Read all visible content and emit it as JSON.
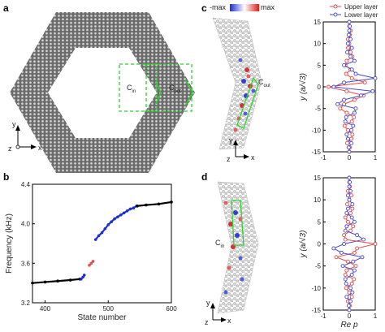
{
  "panels": {
    "a": {
      "label": "a",
      "c_in": "C",
      "c_in_sub": "in",
      "c_out": "C",
      "c_out_sub": "out",
      "axis_y": "y",
      "axis_z": "z",
      "axis_x": "x"
    },
    "b": {
      "label": "b"
    },
    "c": {
      "label": "c",
      "colorbar_min": "-max",
      "colorbar_max": "max",
      "c_label": "C",
      "c_label_sub": "out",
      "axis_y": "y",
      "axis_z": "z",
      "axis_x": "x"
    },
    "d": {
      "label": "d",
      "c_label": "C",
      "c_label_sub": "in",
      "axis_y": "y",
      "axis_z": "z",
      "axis_x": "x"
    }
  },
  "chart_data": [
    {
      "id": "b",
      "type": "scatter",
      "title": "",
      "xlabel": "State number",
      "ylabel": "Frequency (kHz)",
      "xlim": [
        380,
        600
      ],
      "ylim": [
        3.2,
        4.4
      ],
      "xticks": [
        400,
        500,
        600
      ],
      "yticks": [
        3.2,
        3.6,
        4.0,
        4.4
      ],
      "series": [
        {
          "color": "#000000",
          "x": [
            380,
            400,
            420,
            440,
            455
          ],
          "y": [
            3.4,
            3.41,
            3.42,
            3.43,
            3.44
          ]
        },
        {
          "color": "#1f2fd0",
          "x": [
            457,
            460,
            462
          ],
          "y": [
            3.44,
            3.46,
            3.48
          ]
        },
        {
          "color": "#e05050",
          "x": [
            470,
            473,
            476
          ],
          "y": [
            3.58,
            3.6,
            3.62
          ]
        },
        {
          "color": "#1f2fd0",
          "x": [
            480,
            485,
            490,
            495,
            500,
            505,
            510,
            515,
            520,
            525,
            530,
            535,
            540,
            545
          ],
          "y": [
            3.84,
            3.88,
            3.91,
            3.95,
            3.99,
            4.02,
            4.05,
            4.07,
            4.09,
            4.11,
            4.13,
            4.15,
            4.16,
            4.18
          ]
        },
        {
          "color": "#000000",
          "x": [
            546,
            560,
            580,
            600
          ],
          "y": [
            4.18,
            4.19,
            4.2,
            4.22
          ]
        }
      ]
    },
    {
      "id": "c",
      "type": "line",
      "title": "",
      "xlabel": "",
      "ylabel": "y (a/√3)",
      "xlim": [
        -1,
        1
      ],
      "ylim": [
        -15,
        15
      ],
      "xticks": [
        -1,
        0,
        1
      ],
      "yticks": [
        -15,
        -10,
        -5,
        0,
        5,
        10,
        15
      ],
      "legend": "top-right",
      "series": [
        {
          "name": "Upper layer",
          "color": "#e04848",
          "y": [
            -15,
            -14,
            -13,
            -12,
            -11,
            -10,
            -9,
            -8,
            -7,
            -6,
            -5,
            -4,
            -3,
            -2,
            -1,
            0,
            1,
            2,
            3,
            4,
            5,
            6,
            7,
            8,
            9,
            10,
            11,
            12,
            13,
            14,
            15
          ],
          "x": [
            0,
            0.02,
            -0.08,
            0.08,
            0.12,
            -0.05,
            -0.18,
            0.1,
            0.18,
            -0.1,
            -0.35,
            -0.2,
            0.2,
            0.55,
            -0.1,
            -0.8,
            0.6,
            0.1,
            -0.12,
            0.05,
            -0.15,
            -0.1,
            0.12,
            0.05,
            -0.05,
            0.0,
            -0.05,
            0.02,
            0.05,
            0.0,
            0.0
          ]
        },
        {
          "name": "Lower layer",
          "color": "#4848c8",
          "y": [
            -15,
            -14,
            -13,
            -12,
            -11,
            -10,
            -9,
            -8,
            -7,
            -6,
            -5,
            -4,
            -3,
            -2,
            -1,
            0,
            1,
            2,
            3,
            4,
            5,
            6,
            7,
            8,
            9,
            10,
            11,
            12,
            13,
            14,
            15
          ],
          "x": [
            0,
            -0.02,
            0.08,
            -0.05,
            -0.1,
            0.08,
            0.15,
            -0.15,
            -0.12,
            0.2,
            0.25,
            -0.45,
            -0.2,
            0.45,
            0.9,
            -0.6,
            -0.2,
            1.0,
            0.25,
            0.1,
            -0.2,
            0.2,
            0.05,
            -0.08,
            0.1,
            -0.05,
            0.05,
            -0.02,
            0.0,
            0.02,
            0.0
          ]
        }
      ]
    },
    {
      "id": "d",
      "type": "line",
      "title": "",
      "xlabel": "Re p",
      "ylabel": "y (a/√3)",
      "xlim": [
        -1,
        1
      ],
      "ylim": [
        -15,
        15
      ],
      "xticks": [
        -1,
        0,
        1
      ],
      "yticks": [
        -15,
        -10,
        -5,
        0,
        5,
        10,
        15
      ],
      "series": [
        {
          "name": "Upper layer",
          "color": "#e04848",
          "y": [
            -15,
            -14,
            -13,
            -12,
            -11,
            -10,
            -9,
            -8,
            -7,
            -6,
            -5,
            -4,
            -3,
            -2,
            -1,
            0,
            1,
            2,
            3,
            4,
            5,
            6,
            7,
            8,
            9,
            10,
            11,
            12,
            13,
            14,
            15
          ],
          "x": [
            0,
            0.02,
            -0.05,
            0.1,
            0.0,
            -0.12,
            0.1,
            0.18,
            -0.15,
            -0.1,
            0.25,
            -0.05,
            -0.5,
            0.2,
            0.3,
            1.0,
            -0.15,
            -0.2,
            0.05,
            0.15,
            -0.05,
            -0.15,
            0.05,
            0.12,
            -0.08,
            0.0,
            0.08,
            -0.05,
            0.02,
            0.0,
            0.0
          ]
        },
        {
          "name": "Lower layer",
          "color": "#4848c8",
          "y": [
            -15,
            -14,
            -13,
            -12,
            -11,
            -10,
            -9,
            -8,
            -7,
            -6,
            -5,
            -4,
            -3,
            -2,
            -1,
            0,
            1,
            2,
            3,
            4,
            5,
            6,
            7,
            8,
            9,
            10,
            11,
            12,
            13,
            14,
            15
          ],
          "x": [
            0,
            -0.02,
            0.05,
            -0.1,
            0.12,
            0.05,
            -0.12,
            -0.15,
            0.1,
            0.2,
            -0.25,
            0.15,
            0.5,
            -0.3,
            -0.6,
            -0.2,
            0.55,
            0.3,
            -0.15,
            -0.1,
            0.2,
            0.1,
            -0.1,
            -0.05,
            0.12,
            0.0,
            -0.05,
            0.05,
            0.0,
            0.02,
            0.0
          ]
        }
      ]
    }
  ]
}
